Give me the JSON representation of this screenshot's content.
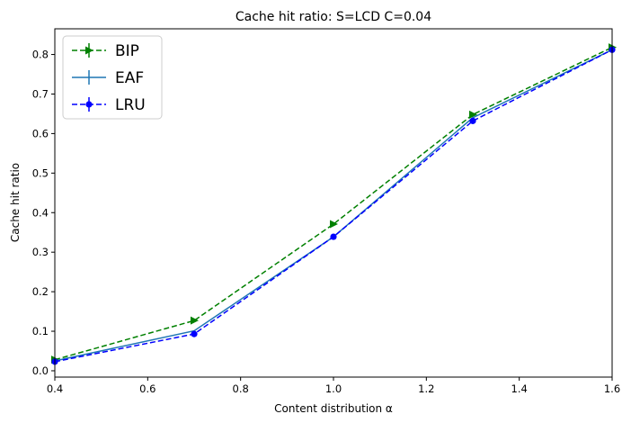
{
  "chart_data": {
    "type": "line",
    "title": "Cache hit ratio: S=LCD C=0.04",
    "xlabel": "Content distribution α",
    "ylabel": "Cache hit ratio",
    "xlim": [
      0.4,
      1.6
    ],
    "ylim": [
      -0.016,
      0.865
    ],
    "xticks": [
      0.4,
      0.6,
      0.8,
      1.0,
      1.2,
      1.4,
      1.6
    ],
    "xtick_labels": [
      "0.4",
      "0.6",
      "0.8",
      "1.0",
      "1.2",
      "1.4",
      "1.6"
    ],
    "yticks": [
      0.0,
      0.1,
      0.2,
      0.3,
      0.4,
      0.5,
      0.6,
      0.7,
      0.8
    ],
    "ytick_labels": [
      "0.0",
      "0.1",
      "0.2",
      "0.3",
      "0.4",
      "0.5",
      "0.6",
      "0.7",
      "0.8"
    ],
    "grid": false,
    "legend_position": "top-left",
    "x": [
      0.4,
      0.7,
      1.0,
      1.3,
      1.6
    ],
    "series": [
      {
        "name": "BIP",
        "values": [
          0.028,
          0.127,
          0.371,
          0.648,
          0.818
        ],
        "color": "#008000",
        "dash": "dashed",
        "marker": "triangle-right"
      },
      {
        "name": "EAF",
        "values": [
          0.025,
          0.101,
          0.339,
          0.64,
          0.812
        ],
        "color": "#1f77b4",
        "dash": "solid",
        "marker": "none"
      },
      {
        "name": "LRU",
        "values": [
          0.023,
          0.093,
          0.339,
          0.632,
          0.812
        ],
        "color": "#0000ff",
        "dash": "dashed",
        "marker": "circle"
      }
    ]
  }
}
